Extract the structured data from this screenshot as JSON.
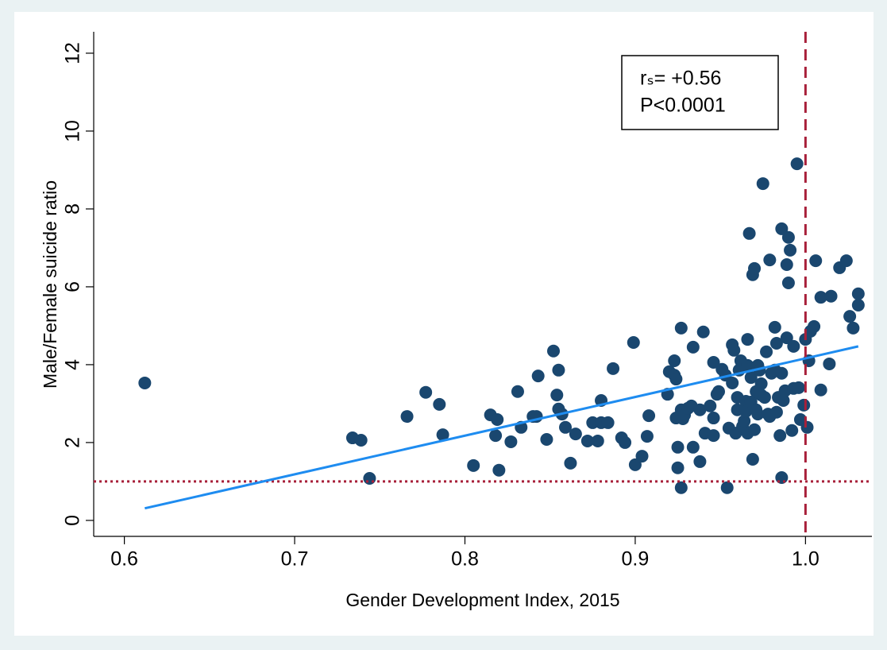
{
  "chart_data": {
    "type": "scatter",
    "x_label": "Gender Development Index, 2015",
    "y_label": "Male/Female suicide ratio",
    "annotation": [
      "rₛ= +0.56",
      "P<0.0001"
    ],
    "color": "#1a476f",
    "x": [
      0.612,
      0.734,
      0.739,
      0.744,
      0.766,
      0.777,
      0.785,
      0.787,
      0.805,
      0.815,
      0.819,
      0.818,
      0.82,
      0.827,
      0.831,
      0.833,
      0.84,
      0.842,
      0.843,
      0.848,
      0.852,
      0.854,
      0.855,
      0.855,
      0.857,
      0.859,
      0.862,
      0.865,
      0.872,
      0.875,
      0.878,
      0.88,
      0.88,
      0.884,
      0.887,
      0.892,
      0.894,
      0.899,
      0.9,
      0.904,
      0.907,
      0.908,
      0.919,
      0.92,
      0.923,
      0.923,
      0.924,
      0.924,
      0.925,
      0.925,
      0.927,
      0.927,
      0.927,
      0.928,
      0.929,
      0.931,
      0.933,
      0.934,
      0.934,
      0.938,
      0.938,
      0.94,
      0.941,
      0.944,
      0.946,
      0.946,
      0.946,
      0.948,
      0.949,
      0.951,
      0.953,
      0.954,
      0.955,
      0.957,
      0.957,
      0.958,
      0.959,
      0.96,
      0.96,
      0.961,
      0.962,
      0.963,
      0.964,
      0.965,
      0.965,
      0.966,
      0.966,
      0.966,
      0.967,
      0.968,
      0.968,
      0.969,
      0.969,
      0.97,
      0.97,
      0.971,
      0.971,
      0.972,
      0.972,
      0.973,
      0.974,
      0.974,
      0.975,
      0.976,
      0.977,
      0.978,
      0.979,
      0.979,
      0.98,
      0.982,
      0.982,
      0.983,
      0.983,
      0.984,
      0.985,
      0.986,
      0.986,
      0.986,
      0.987,
      0.988,
      0.989,
      0.989,
      0.99,
      0.99,
      0.991,
      0.992,
      0.993,
      0.993,
      0.995,
      0.996,
      0.997,
      0.999,
      1.0,
      1.001,
      1.002,
      1.003,
      1.005,
      1.006,
      1.009,
      1.009,
      1.014,
      1.015,
      1.02,
      1.024,
      1.026,
      1.028,
      1.031,
      1.031
    ],
    "values": [
      3.53,
      2.12,
      2.06,
      1.08,
      2.67,
      3.29,
      2.98,
      2.2,
      1.41,
      2.71,
      2.59,
      2.18,
      1.29,
      2.02,
      3.31,
      2.39,
      2.67,
      2.67,
      3.71,
      2.08,
      4.35,
      3.22,
      2.86,
      3.86,
      2.73,
      2.39,
      1.47,
      2.22,
      2.04,
      2.51,
      2.04,
      3.08,
      2.51,
      2.51,
      3.9,
      2.12,
      2.0,
      4.57,
      1.43,
      1.65,
      2.16,
      2.69,
      3.24,
      3.82,
      3.73,
      4.1,
      3.63,
      2.63,
      1.88,
      1.35,
      2.84,
      4.94,
      0.84,
      2.61,
      2.71,
      2.88,
      2.94,
      1.88,
      4.45,
      1.51,
      2.84,
      4.84,
      2.24,
      2.94,
      2.63,
      4.06,
      2.18,
      3.24,
      3.31,
      3.88,
      3.73,
      0.84,
      2.37,
      3.53,
      4.51,
      4.37,
      2.24,
      2.84,
      3.16,
      3.86,
      4.1,
      2.41,
      2.55,
      3.06,
      2.8,
      2.24,
      4.65,
      3.98,
      7.37,
      3.04,
      3.67,
      6.31,
      1.57,
      6.47,
      2.33,
      3.31,
      2.84,
      3.98,
      2.73,
      3.86,
      3.51,
      3.22,
      8.65,
      3.16,
      4.33,
      2.73,
      6.69,
      2.67,
      3.78,
      4.96,
      3.86,
      4.55,
      2.78,
      3.16,
      2.18,
      7.49,
      1.1,
      3.78,
      3.08,
      3.33,
      4.69,
      6.57,
      7.27,
      6.1,
      6.94,
      2.31,
      3.39,
      4.47,
      9.16,
      3.41,
      2.59,
      2.96,
      4.65,
      2.39,
      4.1,
      4.86,
      4.98,
      6.67,
      5.73,
      3.35,
      4.02,
      5.76,
      6.49,
      6.67,
      5.24,
      4.94,
      5.82,
      5.53
    ],
    "fit": {
      "color": "#1e8cf0",
      "x": [
        0.612,
        1.031
      ],
      "values": [
        0.31,
        4.47
      ]
    },
    "reference_lines": [
      {
        "axis": "y",
        "value": 1,
        "color": "#a8203a",
        "style": "dotted"
      },
      {
        "axis": "x",
        "value": 1,
        "color": "#a8203a",
        "style": "dashed"
      }
    ],
    "xlim": [
      0.582,
      1.039
    ],
    "ylim": [
      -0.41,
      12.55
    ],
    "xticks": [
      0.6,
      0.7,
      0.8,
      0.9,
      {
        "value": 1,
        "label": "1.0"
      }
    ],
    "yticks": [
      0,
      2,
      4,
      6,
      8,
      10,
      12
    ]
  }
}
